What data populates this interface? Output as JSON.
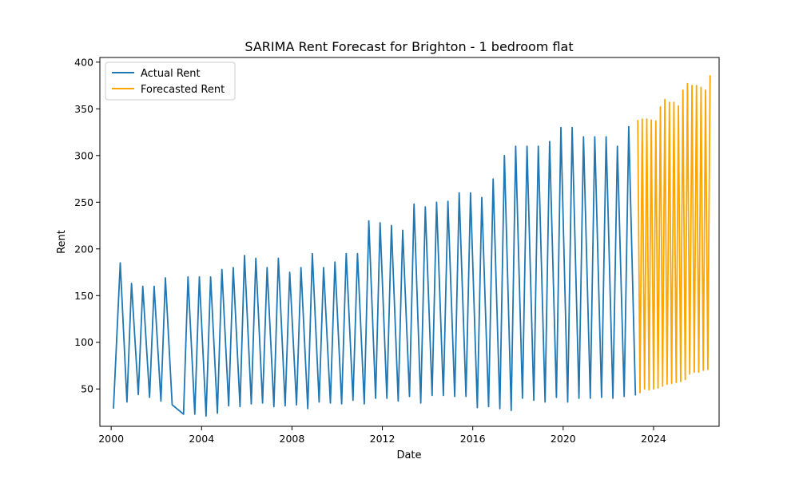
{
  "chart_data": {
    "type": "line",
    "title": "SARIMA Rent Forecast for Brighton - 1 bedroom flat",
    "xlabel": "Date",
    "ylabel": "Rent",
    "xlim": [
      1999.5,
      2026.9
    ],
    "ylim": [
      10,
      405
    ],
    "x_ticks": [
      2000,
      2004,
      2008,
      2012,
      2016,
      2020,
      2024
    ],
    "x_tick_labels": [
      "2000",
      "2004",
      "2008",
      "2012",
      "2016",
      "2020",
      "2024"
    ],
    "y_ticks": [
      50,
      100,
      150,
      200,
      250,
      300,
      350,
      400
    ],
    "y_tick_labels": [
      "50",
      "100",
      "150",
      "200",
      "250",
      "300",
      "350",
      "400"
    ],
    "grid": false,
    "legend_position": "top-left",
    "series": [
      {
        "name": "Actual Rent",
        "color": "#1f77b4",
        "points": [
          [
            2000.1,
            29
          ],
          [
            2000.4,
            185
          ],
          [
            2000.7,
            36
          ],
          [
            2000.9,
            163
          ],
          [
            2001.2,
            44
          ],
          [
            2001.4,
            160
          ],
          [
            2001.7,
            41
          ],
          [
            2001.9,
            160
          ],
          [
            2002.2,
            37
          ],
          [
            2002.4,
            169
          ],
          [
            2002.7,
            33
          ],
          [
            2003.2,
            23
          ],
          [
            2003.4,
            170
          ],
          [
            2003.7,
            23
          ],
          [
            2003.9,
            170
          ],
          [
            2004.2,
            21
          ],
          [
            2004.4,
            170
          ],
          [
            2004.7,
            24
          ],
          [
            2004.9,
            178
          ],
          [
            2005.2,
            32
          ],
          [
            2005.4,
            180
          ],
          [
            2005.7,
            31
          ],
          [
            2005.9,
            193
          ],
          [
            2006.2,
            34
          ],
          [
            2006.4,
            190
          ],
          [
            2006.7,
            35
          ],
          [
            2006.9,
            180
          ],
          [
            2007.2,
            31
          ],
          [
            2007.4,
            190
          ],
          [
            2007.7,
            32
          ],
          [
            2007.9,
            175
          ],
          [
            2008.2,
            33
          ],
          [
            2008.4,
            180
          ],
          [
            2008.7,
            29
          ],
          [
            2008.9,
            195
          ],
          [
            2009.2,
            36
          ],
          [
            2009.4,
            180
          ],
          [
            2009.7,
            35
          ],
          [
            2009.9,
            186
          ],
          [
            2010.2,
            34
          ],
          [
            2010.4,
            195
          ],
          [
            2010.7,
            38
          ],
          [
            2010.9,
            195
          ],
          [
            2011.2,
            34
          ],
          [
            2011.4,
            230
          ],
          [
            2011.7,
            40
          ],
          [
            2011.9,
            228
          ],
          [
            2012.2,
            40
          ],
          [
            2012.4,
            225
          ],
          [
            2012.7,
            37
          ],
          [
            2012.9,
            220
          ],
          [
            2013.2,
            42
          ],
          [
            2013.4,
            248
          ],
          [
            2013.7,
            35
          ],
          [
            2013.9,
            245
          ],
          [
            2014.2,
            43
          ],
          [
            2014.4,
            250
          ],
          [
            2014.7,
            43
          ],
          [
            2014.9,
            251
          ],
          [
            2015.2,
            42
          ],
          [
            2015.4,
            260
          ],
          [
            2015.7,
            42
          ],
          [
            2015.9,
            260
          ],
          [
            2016.2,
            30
          ],
          [
            2016.4,
            255
          ],
          [
            2016.7,
            31
          ],
          [
            2016.9,
            275
          ],
          [
            2017.2,
            29
          ],
          [
            2017.4,
            300
          ],
          [
            2017.7,
            27
          ],
          [
            2017.9,
            310
          ],
          [
            2018.2,
            40
          ],
          [
            2018.4,
            310
          ],
          [
            2018.7,
            38
          ],
          [
            2018.9,
            310
          ],
          [
            2019.2,
            36
          ],
          [
            2019.4,
            315
          ],
          [
            2019.7,
            41
          ],
          [
            2019.9,
            330
          ],
          [
            2020.2,
            36
          ],
          [
            2020.4,
            330
          ],
          [
            2020.7,
            40
          ],
          [
            2020.9,
            320
          ],
          [
            2021.2,
            40
          ],
          [
            2021.4,
            320
          ],
          [
            2021.7,
            41
          ],
          [
            2021.9,
            320
          ],
          [
            2022.2,
            40
          ],
          [
            2022.4,
            310
          ],
          [
            2022.7,
            42
          ],
          [
            2022.9,
            331
          ],
          [
            2023.2,
            43
          ]
        ]
      },
      {
        "name": "Forecasted Rent",
        "color": "#ffa500",
        "points": [
          [
            2023.3,
            338
          ],
          [
            2023.4,
            46
          ],
          [
            2023.5,
            339
          ],
          [
            2023.6,
            50
          ],
          [
            2023.7,
            339
          ],
          [
            2023.8,
            49
          ],
          [
            2023.9,
            338
          ],
          [
            2024.0,
            50
          ],
          [
            2024.1,
            337
          ],
          [
            2024.2,
            51
          ],
          [
            2024.3,
            352
          ],
          [
            2024.4,
            53
          ],
          [
            2024.5,
            360
          ],
          [
            2024.6,
            55
          ],
          [
            2024.7,
            357
          ],
          [
            2024.8,
            56
          ],
          [
            2024.9,
            357
          ],
          [
            2025.0,
            57
          ],
          [
            2025.1,
            353
          ],
          [
            2025.2,
            58
          ],
          [
            2025.3,
            370
          ],
          [
            2025.4,
            60
          ],
          [
            2025.5,
            377
          ],
          [
            2025.6,
            66
          ],
          [
            2025.7,
            375
          ],
          [
            2025.8,
            68
          ],
          [
            2025.9,
            375
          ],
          [
            2026.0,
            68
          ],
          [
            2026.1,
            373
          ],
          [
            2026.2,
            70
          ],
          [
            2026.3,
            370
          ],
          [
            2026.4,
            71
          ],
          [
            2026.5,
            386
          ]
        ]
      }
    ]
  }
}
